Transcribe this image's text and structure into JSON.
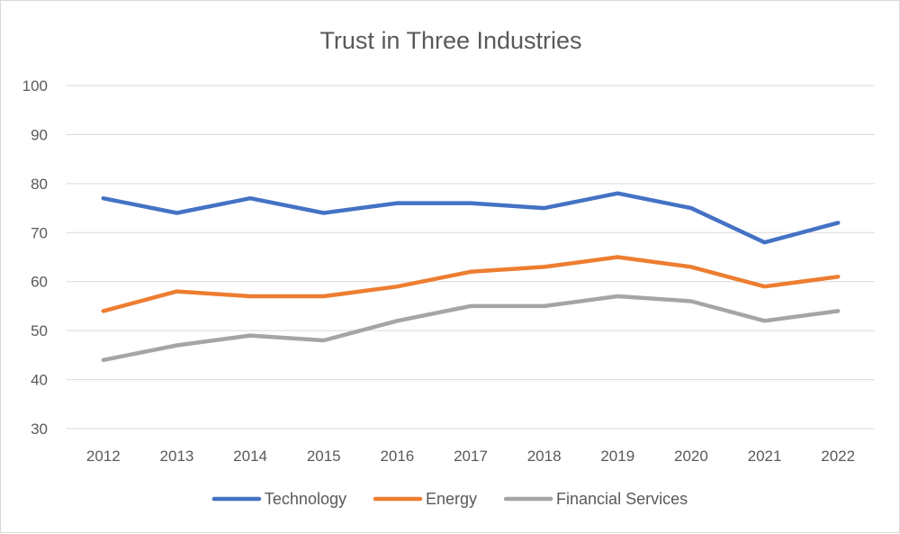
{
  "chart_data": {
    "type": "line",
    "title": "Trust in Three Industries",
    "xlabel": "",
    "ylabel": "",
    "categories": [
      "2012",
      "2013",
      "2014",
      "2015",
      "2016",
      "2017",
      "2018",
      "2019",
      "2020",
      "2021",
      "2022"
    ],
    "ylim": [
      30,
      100
    ],
    "yticks": [
      30,
      40,
      50,
      60,
      70,
      80,
      90,
      100
    ],
    "grid": true,
    "legend_position": "bottom",
    "series": [
      {
        "name": "Technology",
        "color": "#4472C4",
        "values": [
          77,
          74,
          77,
          74,
          76,
          76,
          75,
          78,
          75,
          68,
          72
        ]
      },
      {
        "name": "Energy",
        "color": "#ED7D31",
        "values": [
          54,
          58,
          57,
          57,
          59,
          62,
          63,
          65,
          63,
          59,
          61
        ]
      },
      {
        "name": "Financial Services",
        "color": "#A5A5A5",
        "values": [
          44,
          47,
          49,
          48,
          52,
          55,
          55,
          57,
          56,
          52,
          54
        ]
      }
    ]
  }
}
